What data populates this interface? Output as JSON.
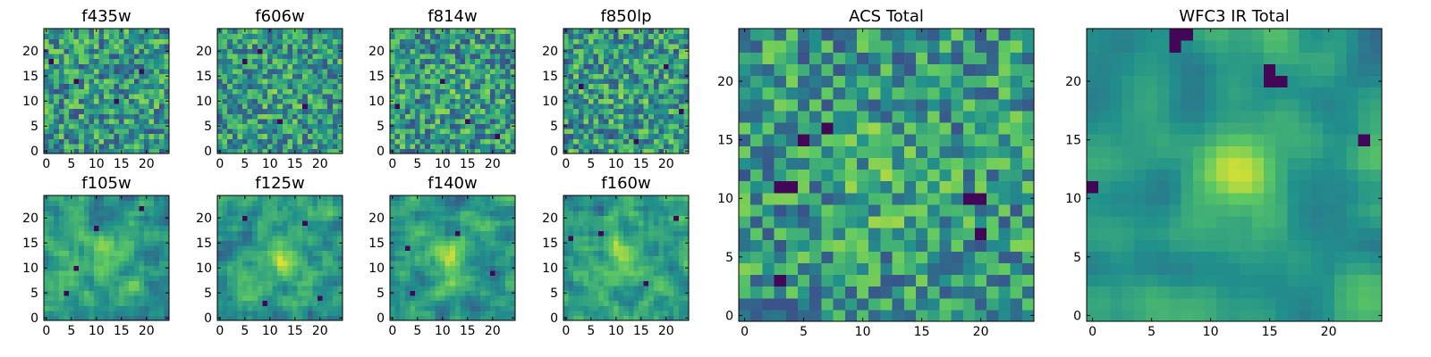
{
  "figure": {
    "description_visible": false
  },
  "colormap": {
    "name": "viridis",
    "stops": [
      "#440154",
      "#3b528b",
      "#21918c",
      "#5ec962",
      "#fde725"
    ]
  },
  "chart_data": [
    {
      "type": "heatmap",
      "title": "f435w",
      "grid_size": 25,
      "xlim": [
        0,
        24
      ],
      "ylim": [
        0,
        24
      ],
      "xticks": [
        0,
        5,
        10,
        15,
        20
      ],
      "yticks": [
        0,
        5,
        10,
        15,
        20
      ],
      "seed": 11,
      "noise_level": 0.9,
      "center_bright": 0.0,
      "smooth": 0,
      "dark_spots": [
        [
          16,
          19
        ],
        [
          18,
          1
        ],
        [
          10,
          14
        ],
        [
          14,
          6
        ]
      ]
    },
    {
      "type": "heatmap",
      "title": "f606w",
      "grid_size": 25,
      "xlim": [
        0,
        24
      ],
      "ylim": [
        0,
        24
      ],
      "xticks": [
        0,
        5,
        10,
        15,
        20
      ],
      "yticks": [
        0,
        5,
        10,
        15,
        20
      ],
      "seed": 23,
      "noise_level": 0.85,
      "center_bright": 0.15,
      "smooth": 0,
      "dark_spots": [
        [
          20,
          8
        ],
        [
          18,
          5
        ],
        [
          9,
          17
        ],
        [
          6,
          12
        ]
      ]
    },
    {
      "type": "heatmap",
      "title": "f814w",
      "grid_size": 25,
      "xlim": [
        0,
        24
      ],
      "ylim": [
        0,
        24
      ],
      "xticks": [
        0,
        5,
        10,
        15,
        20
      ],
      "yticks": [
        0,
        5,
        10,
        15,
        20
      ],
      "seed": 37,
      "noise_level": 0.9,
      "center_bright": 0.1,
      "smooth": 0,
      "dark_spots": [
        [
          14,
          10
        ],
        [
          6,
          15
        ],
        [
          3,
          21
        ],
        [
          9,
          1
        ]
      ]
    },
    {
      "type": "heatmap",
      "title": "f850lp",
      "grid_size": 25,
      "xlim": [
        0,
        24
      ],
      "ylim": [
        0,
        24
      ],
      "xticks": [
        0,
        5,
        10,
        15,
        20
      ],
      "yticks": [
        0,
        5,
        10,
        15,
        20
      ],
      "seed": 41,
      "noise_level": 0.9,
      "center_bright": 0.1,
      "smooth": 0,
      "dark_spots": [
        [
          13,
          3
        ],
        [
          8,
          23
        ],
        [
          17,
          20
        ],
        [
          2,
          14
        ]
      ]
    },
    {
      "type": "heatmap",
      "title": "f105w",
      "grid_size": 25,
      "xlim": [
        0,
        24
      ],
      "ylim": [
        0,
        24
      ],
      "xticks": [
        0,
        5,
        10,
        15,
        20
      ],
      "yticks": [
        0,
        5,
        10,
        15,
        20
      ],
      "seed": 53,
      "noise_level": 0.75,
      "center_bright": 0.35,
      "smooth": 1,
      "dark_spots": [
        [
          10,
          6
        ],
        [
          18,
          10
        ],
        [
          22,
          19
        ],
        [
          5,
          4
        ]
      ]
    },
    {
      "type": "heatmap",
      "title": "f125w",
      "grid_size": 25,
      "xlim": [
        0,
        24
      ],
      "ylim": [
        0,
        24
      ],
      "xticks": [
        0,
        5,
        10,
        15,
        20
      ],
      "yticks": [
        0,
        5,
        10,
        15,
        20
      ],
      "seed": 67,
      "noise_level": 0.7,
      "center_bright": 0.45,
      "smooth": 1,
      "dark_spots": [
        [
          19,
          17
        ],
        [
          4,
          20
        ],
        [
          3,
          9
        ],
        [
          20,
          5
        ]
      ]
    },
    {
      "type": "heatmap",
      "title": "f140w",
      "grid_size": 25,
      "xlim": [
        0,
        24
      ],
      "ylim": [
        0,
        24
      ],
      "xticks": [
        0,
        5,
        10,
        15,
        20
      ],
      "yticks": [
        0,
        5,
        10,
        15,
        20
      ],
      "seed": 71,
      "noise_level": 0.7,
      "center_bright": 0.5,
      "smooth": 1,
      "dark_spots": [
        [
          5,
          4
        ],
        [
          17,
          13
        ],
        [
          9,
          20
        ],
        [
          14,
          3
        ]
      ]
    },
    {
      "type": "heatmap",
      "title": "f160w",
      "grid_size": 25,
      "xlim": [
        0,
        24
      ],
      "ylim": [
        0,
        24
      ],
      "xticks": [
        0,
        5,
        10,
        15,
        20
      ],
      "yticks": [
        0,
        5,
        10,
        15,
        20
      ],
      "seed": 89,
      "noise_level": 0.75,
      "center_bright": 0.45,
      "smooth": 1,
      "dark_spots": [
        [
          17,
          7
        ],
        [
          7,
          16
        ],
        [
          20,
          22
        ],
        [
          16,
          1
        ]
      ]
    },
    {
      "type": "heatmap",
      "title": "ACS Total",
      "grid_size": 25,
      "xlim": [
        0,
        24
      ],
      "ylim": [
        0,
        24
      ],
      "xticks": [
        0,
        5,
        10,
        15,
        20
      ],
      "yticks": [
        0,
        5,
        10,
        15,
        20
      ],
      "seed": 97,
      "noise_level": 0.85,
      "center_bright": 0.2,
      "smooth": 0,
      "dark_spots": [
        [
          11,
          3
        ],
        [
          11,
          4
        ],
        [
          10,
          19
        ],
        [
          10,
          20
        ],
        [
          15,
          5
        ],
        [
          16,
          7
        ],
        [
          7,
          20
        ],
        [
          3,
          3
        ]
      ]
    },
    {
      "type": "heatmap",
      "title": "WFC3 IR Total",
      "grid_size": 25,
      "xlim": [
        0,
        24
      ],
      "ylim": [
        0,
        24
      ],
      "xticks": [
        0,
        5,
        10,
        15,
        20
      ],
      "yticks": [
        0,
        5,
        10,
        15,
        20
      ],
      "seed": 103,
      "noise_level": 0.55,
      "center_bright": 0.7,
      "smooth": 2,
      "dark_spots": [
        [
          24,
          7
        ],
        [
          24,
          8
        ],
        [
          23,
          7
        ],
        [
          21,
          15
        ],
        [
          20,
          15
        ],
        [
          20,
          16
        ],
        [
          15,
          23
        ],
        [
          11,
          0
        ]
      ]
    }
  ]
}
